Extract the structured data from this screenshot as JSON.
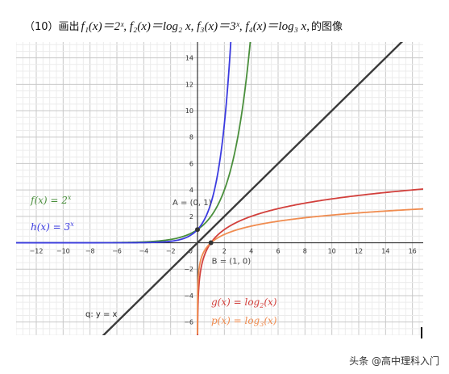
{
  "title": {
    "prefix": "（10）画出",
    "formula": "f₁(x)＝2ˣ, f₂(x)＝log₂ x, f₃(x)＝3ˣ, f₄(x)＝log₃ x,",
    "suffix": "的图像"
  },
  "watermark": "头条 @高中理科入门",
  "chart_data": {
    "type": "line",
    "title": "",
    "xlabel": "",
    "ylabel": "",
    "xlim": [
      -13.5,
      16.8
    ],
    "ylim": [
      -7,
      15.2
    ],
    "grid": true,
    "x_ticks": [
      -12,
      -10,
      -8,
      -6,
      -4,
      -2,
      2,
      4,
      6,
      8,
      10,
      12,
      14,
      16
    ],
    "y_ticks": [
      -6,
      -4,
      -2,
      2,
      4,
      6,
      8,
      10,
      12,
      14
    ],
    "series": [
      {
        "name": "f(x) = 2^x",
        "function": "2^x",
        "color": "#4a8f3c"
      },
      {
        "name": "h(x) = 3^x",
        "function": "3^x",
        "color": "#3b3be0"
      },
      {
        "name": "g(x) = log2(x)",
        "function": "log2(x)",
        "color": "#d2403c"
      },
      {
        "name": "p(x) = log3(x)",
        "function": "log3(x)",
        "color": "#f08c50"
      },
      {
        "name": "q: y = x",
        "function": "x",
        "color": "#3a3a3a"
      }
    ],
    "points": [
      {
        "name": "A",
        "label": "A = (0, 1)",
        "x": 0,
        "y": 1
      },
      {
        "name": "B",
        "label": "B = (1, 0)",
        "x": 1,
        "y": 0
      }
    ],
    "legend": {
      "f": {
        "lhs": "f(x) = 2",
        "sup": "x",
        "color": "#4a8f3c"
      },
      "h": {
        "lhs": "h(x) = 3",
        "sup": "x",
        "color": "#3b3be0"
      },
      "g": {
        "lhs": "g(x) = log",
        "sub": "2",
        "rhs": "(x)",
        "color": "#d2403c"
      },
      "p": {
        "lhs": "p(x) = log",
        "sub": "3",
        "rhs": "(x)",
        "color": "#f08c50"
      },
      "q": {
        "text": "q: y = x",
        "color": "#222222"
      }
    }
  }
}
